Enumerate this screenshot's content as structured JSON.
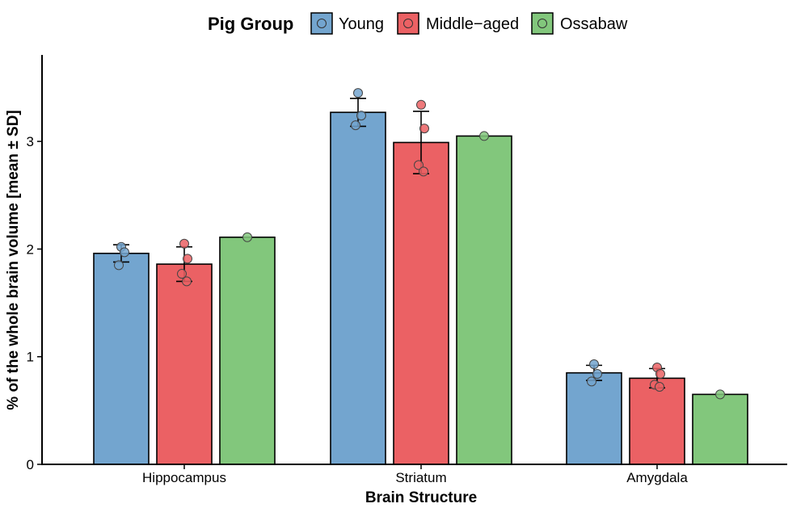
{
  "chart_data": {
    "type": "bar",
    "legend_title": "Pig Group",
    "legend_position": "top",
    "categories": [
      "Hippocampus",
      "Striatum",
      "Amygdala"
    ],
    "xlabel": "Brain Structure",
    "ylabel": "% of the whole brain volume [mean ± SD]",
    "ylim": [
      0,
      3.8
    ],
    "yticks": [
      "0",
      "1",
      "2",
      "3"
    ],
    "grid": false,
    "series": [
      {
        "name": "Young",
        "color": "#73A5CF",
        "values": [
          1.96,
          3.27,
          0.85
        ],
        "sd": [
          0.08,
          0.13,
          0.07
        ],
        "points": [
          [
            2.02,
            1.97,
            1.85
          ],
          [
            3.45,
            3.24,
            3.15
          ],
          [
            0.93,
            0.84,
            0.77
          ]
        ]
      },
      {
        "name": "Middle−aged",
        "color": "#EB6164",
        "values": [
          1.86,
          2.99,
          0.8
        ],
        "sd": [
          0.16,
          0.29,
          0.09
        ],
        "points": [
          [
            2.05,
            1.91,
            1.77,
            1.7
          ],
          [
            3.34,
            3.12,
            2.78,
            2.72
          ],
          [
            0.9,
            0.84,
            0.74,
            0.72
          ]
        ]
      },
      {
        "name": "Ossabaw",
        "color": "#82C77C",
        "values": [
          2.11,
          3.05,
          0.65
        ],
        "sd": [
          null,
          null,
          null
        ],
        "points": [
          [
            2.11
          ],
          [
            3.05
          ],
          [
            0.65
          ]
        ]
      }
    ]
  }
}
